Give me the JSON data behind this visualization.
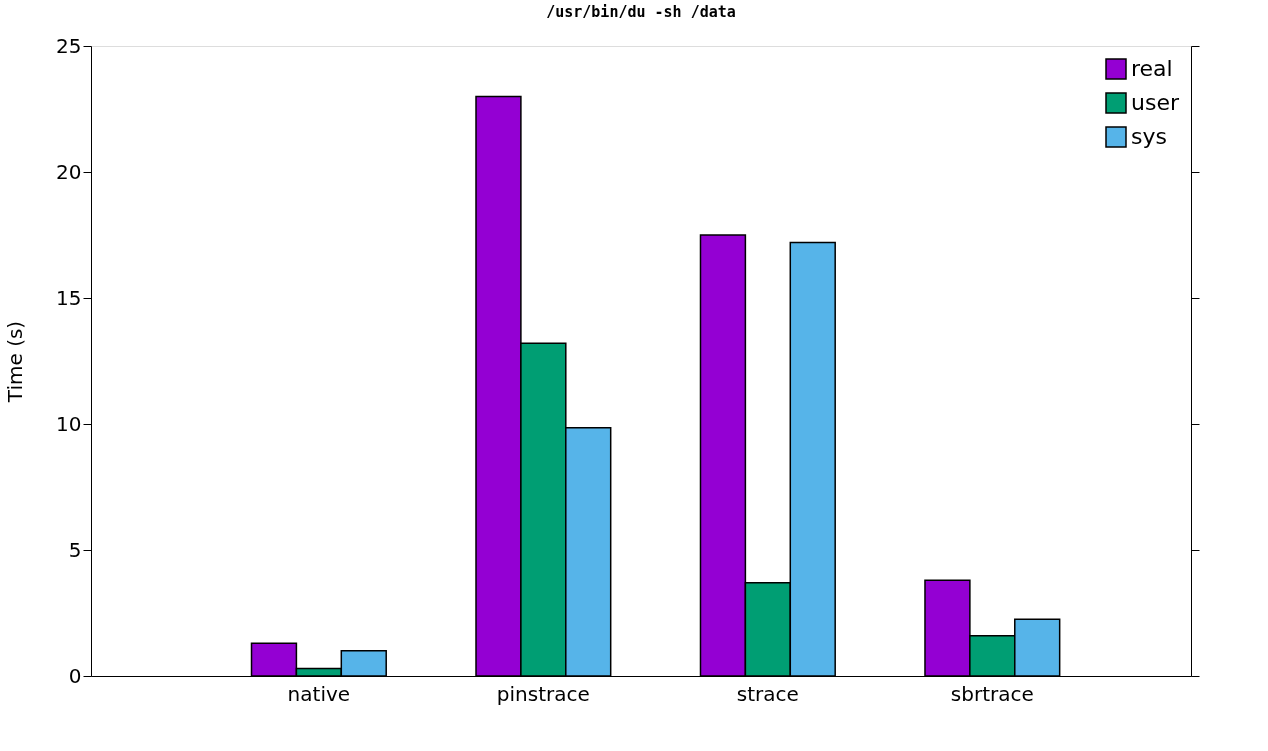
{
  "chart_data": {
    "type": "bar",
    "title": "/usr/bin/du -sh /data",
    "ylabel": "Time (s)",
    "categories": [
      "native",
      "pinstrace",
      "strace",
      "sbrtrace"
    ],
    "series": [
      {
        "name": "real",
        "color": "#9400d3",
        "values": [
          1.3,
          23.0,
          17.5,
          3.8
        ]
      },
      {
        "name": "user",
        "color": "#009e73",
        "values": [
          0.3,
          13.2,
          3.7,
          1.6
        ]
      },
      {
        "name": "sys",
        "color": "#56b4e9",
        "values": [
          1.0,
          9.85,
          17.2,
          2.25
        ]
      }
    ],
    "ylim": [
      0,
      25
    ],
    "yticks": [
      0,
      5,
      10,
      15,
      20,
      25
    ],
    "grid": false,
    "legend": "top right"
  }
}
